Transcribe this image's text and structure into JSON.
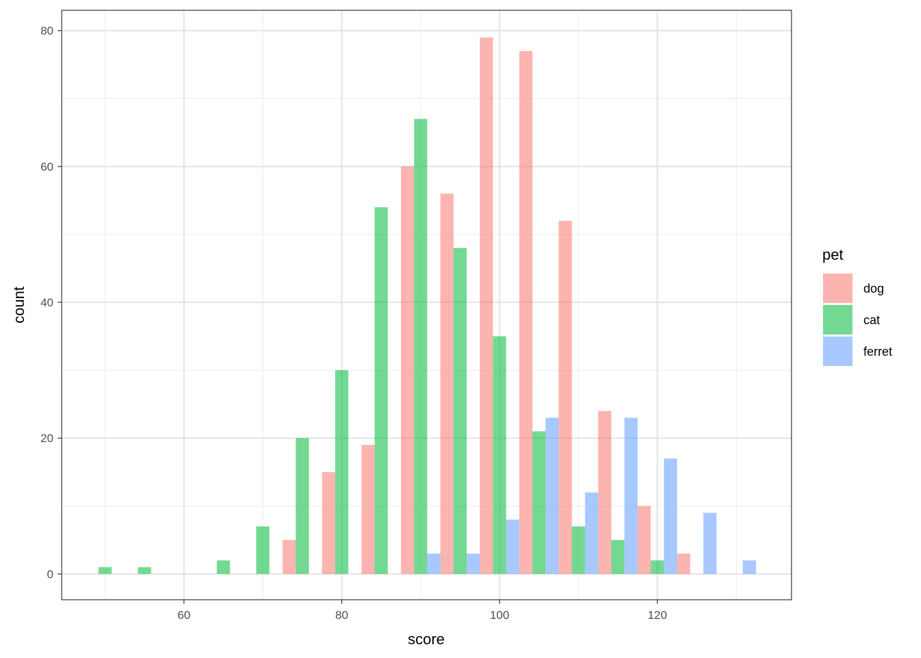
{
  "chart_data": {
    "type": "bar",
    "title": "",
    "xlabel": "score",
    "ylabel": "count",
    "xlim": [
      44.5,
      137
    ],
    "ylim": [
      -3.8,
      83
    ],
    "x_ticks": [
      60,
      80,
      100,
      120
    ],
    "y_ticks": [
      0,
      20,
      40,
      60,
      80
    ],
    "bin_width": 5,
    "grid": true,
    "legend_position": "right",
    "legend_title": "pet",
    "series": [
      {
        "name": "dog",
        "color": "#F8766D",
        "bins": [
          {
            "center": 75,
            "count": 5
          },
          {
            "center": 80,
            "count": 15
          },
          {
            "center": 85,
            "count": 19
          },
          {
            "center": 90,
            "count": 60
          },
          {
            "center": 95,
            "count": 56
          },
          {
            "center": 100,
            "count": 79
          },
          {
            "center": 105,
            "count": 77
          },
          {
            "center": 110,
            "count": 52
          },
          {
            "center": 115,
            "count": 24
          },
          {
            "center": 120,
            "count": 10
          },
          {
            "center": 125,
            "count": 3
          }
        ]
      },
      {
        "name": "cat",
        "color": "#00BA38",
        "bins": [
          {
            "center": 50,
            "count": 1
          },
          {
            "center": 55,
            "count": 1
          },
          {
            "center": 65,
            "count": 2
          },
          {
            "center": 70,
            "count": 7
          },
          {
            "center": 75,
            "count": 20
          },
          {
            "center": 80,
            "count": 30
          },
          {
            "center": 85,
            "count": 54
          },
          {
            "center": 90,
            "count": 67
          },
          {
            "center": 95,
            "count": 48
          },
          {
            "center": 100,
            "count": 35
          },
          {
            "center": 105,
            "count": 21
          },
          {
            "center": 110,
            "count": 7
          },
          {
            "center": 115,
            "count": 5
          },
          {
            "center": 120,
            "count": 2
          }
        ]
      },
      {
        "name": "ferret",
        "color": "#619CFF",
        "bins": [
          {
            "center": 90,
            "count": 3
          },
          {
            "center": 95,
            "count": 3
          },
          {
            "center": 100,
            "count": 8
          },
          {
            "center": 105,
            "count": 23
          },
          {
            "center": 110,
            "count": 12
          },
          {
            "center": 115,
            "count": 23
          },
          {
            "center": 120,
            "count": 17
          },
          {
            "center": 125,
            "count": 9
          },
          {
            "center": 130,
            "count": 2
          }
        ]
      }
    ]
  }
}
